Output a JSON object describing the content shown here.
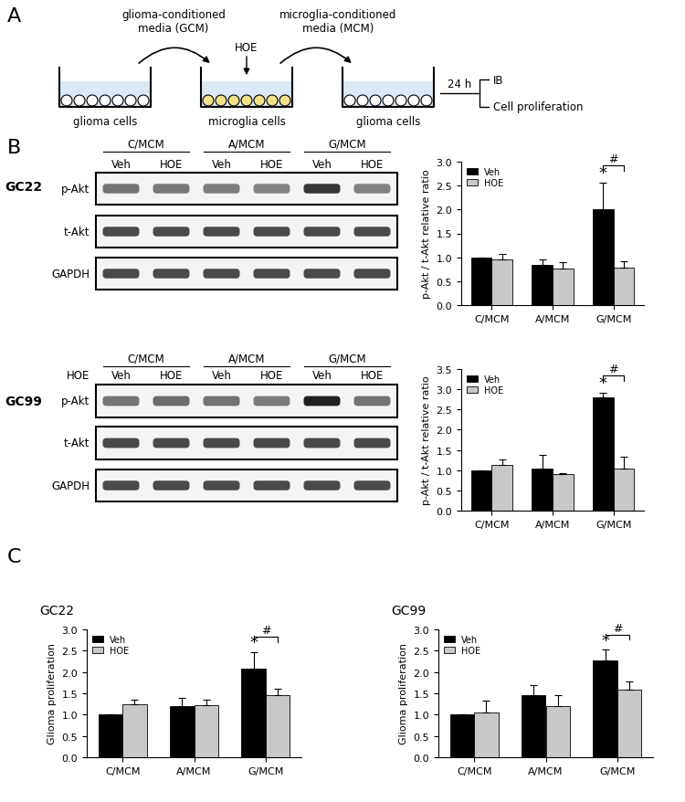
{
  "panel_labels": [
    "A",
    "B",
    "C"
  ],
  "diagram": {
    "wells": [
      "glioma cells",
      "microglia cells",
      "glioma cells"
    ],
    "arrows": [
      "glioma-conditioned\nmedia (GCM)",
      "microglia-conditioned\nmedia (MCM)"
    ],
    "treatment": "HOE",
    "time": "24 h",
    "readouts": [
      "IB",
      "Cell proliferation"
    ]
  },
  "blots": [
    {
      "name": "GC22",
      "groups": [
        "C/MCM",
        "A/MCM",
        "G/MCM"
      ],
      "lanes": [
        "Veh",
        "HOE"
      ],
      "rows": [
        "p-Akt",
        "t-Akt",
        "GAPDH"
      ]
    },
    {
      "name": "GC99",
      "groups": [
        "C/MCM",
        "A/MCM",
        "G/MCM"
      ],
      "lanes": [
        "Veh",
        "HOE"
      ],
      "rows": [
        "p-Akt",
        "t-Akt",
        "GAPDH"
      ],
      "lane_row_label": "HOE"
    }
  ],
  "chart_data": [
    {
      "type": "bar",
      "y_label": "p-Akt / t-Akt relative ratio",
      "categories": [
        "C/MCM",
        "A/MCM",
        "G/MCM"
      ],
      "series": [
        {
          "name": "Veh",
          "color": "#000000",
          "values": [
            1.0,
            0.85,
            2.0
          ],
          "errors": [
            0.0,
            0.1,
            0.57
          ]
        },
        {
          "name": "HOE",
          "color": "#c8c8c8",
          "values": [
            0.95,
            0.77,
            0.78
          ],
          "errors": [
            0.12,
            0.12,
            0.13
          ]
        }
      ],
      "ylim": [
        0.0,
        3.0
      ],
      "yticks": [
        0.0,
        0.5,
        1.0,
        1.5,
        2.0,
        2.5,
        3.0
      ],
      "legend": "upper left",
      "annotations": [
        {
          "text": "*",
          "category": "G/MCM",
          "series": "Veh"
        },
        {
          "text": "#",
          "category": "G/MCM",
          "series": [
            "Veh",
            "HOE"
          ]
        }
      ]
    },
    {
      "type": "bar",
      "y_label": "p-Akt / t-Akt relative ratio",
      "categories": [
        "C/MCM",
        "A/MCM",
        "G/MCM"
      ],
      "series": [
        {
          "name": "Veh",
          "color": "#000000",
          "values": [
            1.0,
            1.03,
            2.8
          ],
          "errors": [
            0.0,
            0.35,
            0.12
          ]
        },
        {
          "name": "HOE",
          "color": "#c8c8c8",
          "values": [
            1.13,
            0.9,
            1.03
          ],
          "errors": [
            0.13,
            0.02,
            0.3
          ]
        }
      ],
      "ylim": [
        0.0,
        3.5
      ],
      "yticks": [
        0.0,
        0.5,
        1.0,
        1.5,
        2.0,
        2.5,
        3.0,
        3.5
      ],
      "legend": "upper left",
      "annotations": [
        {
          "text": "*",
          "category": "G/MCM",
          "series": "Veh"
        },
        {
          "text": "#",
          "category": "G/MCM",
          "series": [
            "Veh",
            "HOE"
          ]
        }
      ]
    },
    {
      "type": "bar",
      "title": "GC22",
      "y_label": "Glioma proliferation",
      "categories": [
        "C/MCM",
        "A/MCM",
        "G/MCM"
      ],
      "series": [
        {
          "name": "Veh",
          "color": "#000000",
          "values": [
            1.0,
            1.2,
            2.07
          ],
          "errors": [
            0.0,
            0.2,
            0.4
          ]
        },
        {
          "name": "HOE",
          "color": "#c8c8c8",
          "values": [
            1.25,
            1.23,
            1.45
          ],
          "errors": [
            0.1,
            0.13,
            0.15
          ]
        }
      ],
      "ylim": [
        0.0,
        3.0
      ],
      "yticks": [
        0.0,
        0.5,
        1.0,
        1.5,
        2.0,
        2.5,
        3.0
      ],
      "legend": "upper left",
      "annotations": [
        {
          "text": "*",
          "category": "G/MCM",
          "series": "Veh"
        },
        {
          "text": "#",
          "category": "G/MCM",
          "series": [
            "Veh",
            "HOE"
          ]
        }
      ]
    },
    {
      "type": "bar",
      "title": "GC99",
      "y_label": "Glioma proliferation",
      "categories": [
        "C/MCM",
        "A/MCM",
        "G/MCM"
      ],
      "series": [
        {
          "name": "Veh",
          "color": "#000000",
          "values": [
            1.0,
            1.45,
            2.27
          ],
          "errors": [
            0.0,
            0.25,
            0.25
          ]
        },
        {
          "name": "HOE",
          "color": "#c8c8c8",
          "values": [
            1.05,
            1.2,
            1.58
          ],
          "errors": [
            0.28,
            0.25,
            0.2
          ]
        }
      ],
      "ylim": [
        0.0,
        3.0
      ],
      "yticks": [
        0.0,
        0.5,
        1.0,
        1.5,
        2.0,
        2.5,
        3.0
      ],
      "legend": "upper left",
      "annotations": [
        {
          "text": "*",
          "category": "G/MCM",
          "series": "Veh"
        },
        {
          "text": "#",
          "category": "G/MCM",
          "series": [
            "Veh",
            "HOE"
          ]
        }
      ]
    }
  ]
}
